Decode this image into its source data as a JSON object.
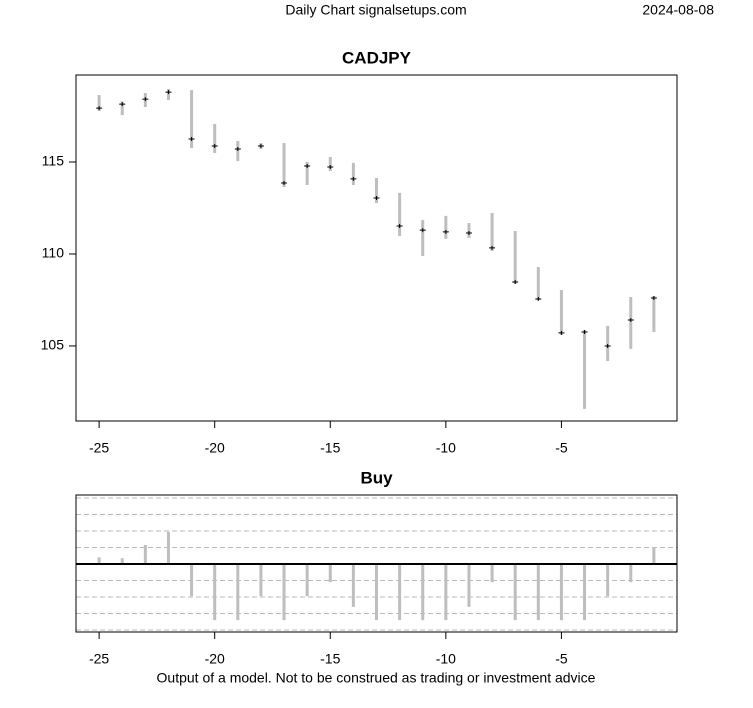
{
  "header": {
    "left": "Daily Chart signalsetups.com",
    "right": "2024-08-08"
  },
  "footer": "Output of a model. Not to be construed as trading or investment advice",
  "chart_data": [
    {
      "type": "hlc",
      "title": "CADJPY",
      "x": [
        -25,
        -24,
        -23,
        -22,
        -21,
        -20,
        -19,
        -18,
        -17,
        -16,
        -15,
        -14,
        -13,
        -12,
        -11,
        -10,
        -9,
        -8,
        -7,
        -6,
        -5,
        -4,
        -3,
        -2,
        -1
      ],
      "high": [
        118.64,
        118.3,
        118.75,
        118.97,
        118.91,
        117.07,
        116.14,
        116.03,
        116.03,
        115,
        115.27,
        114.95,
        114.13,
        113.32,
        111.85,
        112.07,
        111.68,
        112.23,
        111.25,
        109.29,
        108.04,
        105.87,
        106.09,
        107.66,
        107.72
      ],
      "low": [
        117.77,
        117.55,
        117.99,
        118.37,
        115.76,
        115.49,
        115.05,
        115.71,
        113.64,
        113.75,
        114.51,
        113.75,
        112.77,
        110.98,
        109.89,
        110.82,
        110.87,
        110.16,
        108.37,
        107.5,
        105.6,
        101.58,
        104.18,
        104.84,
        105.76
      ],
      "close": [
        117.93,
        118.15,
        118.42,
        118.8,
        116.25,
        115.87,
        115.71,
        115.87,
        113.86,
        114.78,
        114.73,
        114.08,
        113.04,
        111.52,
        111.3,
        111.2,
        111.14,
        110.33,
        108.48,
        107.55,
        105.71,
        105.76,
        105,
        106.41,
        107.61
      ],
      "color": "#bebebe",
      "xlim": [
        -26,
        0
      ],
      "xticks": [
        -25,
        -20,
        -15,
        -10,
        -5
      ],
      "ylim": [
        100.92,
        119.73
      ],
      "yticks": [
        105,
        110,
        115
      ]
    },
    {
      "type": "bar",
      "title": "Buy",
      "x": [
        -25,
        -24,
        -23,
        -22,
        -21,
        -20,
        -19,
        -18,
        -17,
        -16,
        -15,
        -14,
        -13,
        -12,
        -11,
        -10,
        -9,
        -8,
        -7,
        -6,
        -5,
        -4,
        -3,
        -2,
        -1
      ],
      "values": [
        0.4,
        0.35,
        1.15,
        1.95,
        -1.95,
        -3.4,
        -3.4,
        -1.95,
        -3.4,
        -1.95,
        -1.1,
        -2.6,
        -3.4,
        -3.4,
        -3.4,
        -3.4,
        -2.6,
        -1.1,
        -3.4,
        -3.4,
        -3.4,
        -3.4,
        -1.95,
        -1.1,
        0.97
      ],
      "color": "#bebebe",
      "xlim": [
        -26,
        0
      ],
      "xticks": [
        -25,
        -20,
        -15,
        -10,
        -5
      ],
      "ylim": [
        -4.12,
        4.18
      ],
      "gridlines": [
        -4,
        -3,
        -2,
        -1,
        1,
        2,
        3,
        4
      ]
    }
  ]
}
